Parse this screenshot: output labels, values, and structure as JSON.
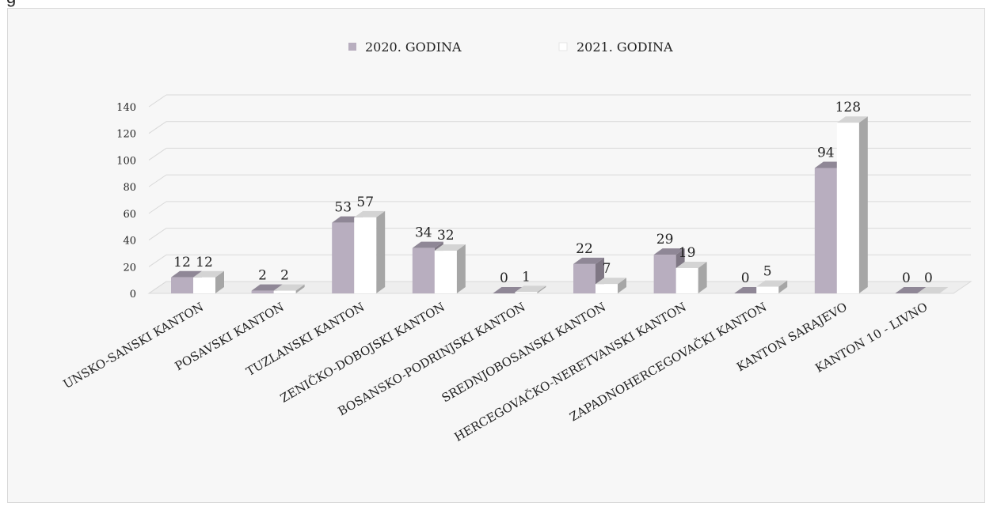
{
  "page": {
    "top_fragment": "g"
  },
  "colors": {
    "series_2020": "#b8aebf",
    "series_2021": "#ffffff",
    "grid": "#d9d9d9",
    "background": "#f7f7f7"
  },
  "chart_data": {
    "type": "bar",
    "style": "3d-clustered-column",
    "categories": [
      "UNSKO-SANSKI KANTON",
      "POSAVSKI KANTON",
      "TUZLANSKI KANTON",
      "ZENIČKO-DOBOJSKI KANTON",
      "BOSANSKO-PODRINJSKI KANTON",
      "SREDNJOBOSANSKI KANTON",
      "HERCEGOVAČKO-NERETVANSKI KANTON",
      "ZAPADNOHERCEGOVAČKI KANTON",
      "KANTON SARAJEVO",
      "KANTON 10 - LIVNO"
    ],
    "series": [
      {
        "name": "2020. GODINA",
        "values": [
          12,
          2,
          53,
          34,
          0,
          22,
          29,
          0,
          94,
          0
        ]
      },
      {
        "name": "2021. GODINA",
        "values": [
          12,
          2,
          57,
          32,
          1,
          7,
          19,
          5,
          128,
          0
        ]
      }
    ],
    "ylim": [
      0,
      140
    ],
    "yticks": [
      0,
      20,
      40,
      60,
      80,
      100,
      120,
      140
    ],
    "grid": true,
    "legend_position": "top-center",
    "data_labels": true
  }
}
